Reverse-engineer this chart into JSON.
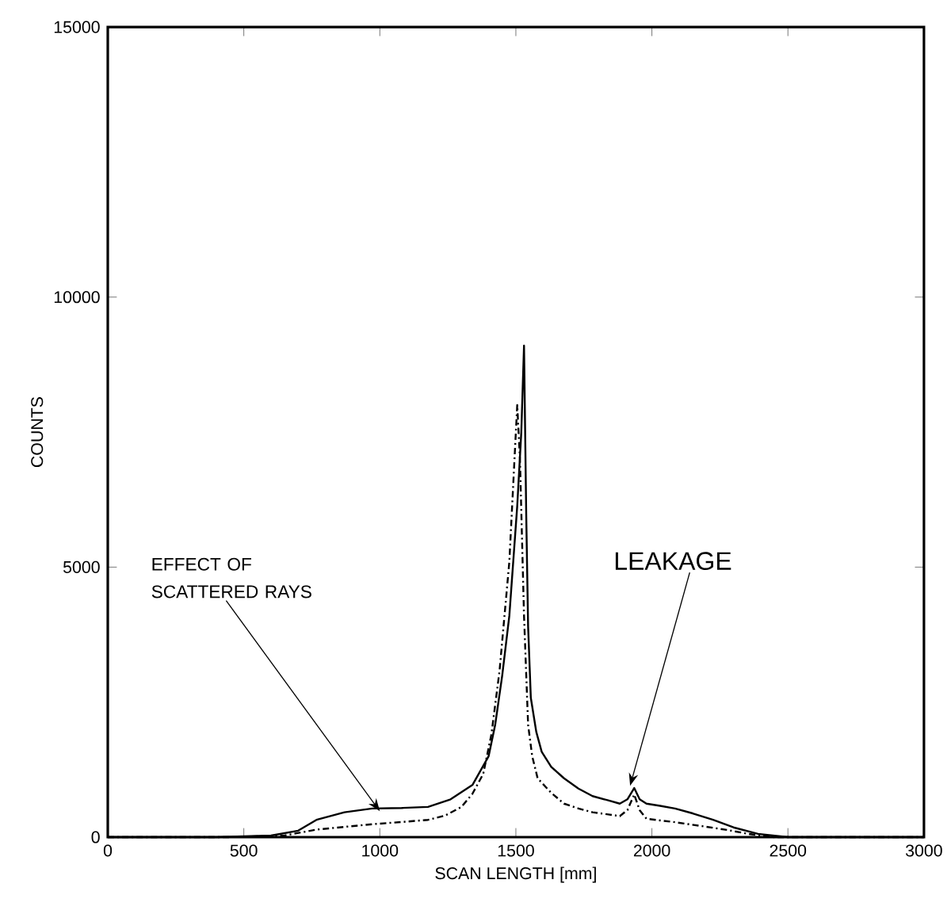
{
  "chart_data": {
    "type": "line",
    "xlabel": "SCAN LENGTH [mm]",
    "ylabel": "COUNTS",
    "xlim": [
      0,
      3000
    ],
    "xticks": [
      0,
      500,
      1000,
      1500,
      2000,
      2500,
      3000
    ],
    "ylim": [
      0,
      15000
    ],
    "yticks": [
      0,
      5000,
      10000,
      15000
    ],
    "grid": false,
    "marker": "none",
    "series": [
      {
        "color": "#000000",
        "line_style": "solid",
        "x": [
          0,
          400,
          600,
          700,
          767,
          870,
          972,
          1080,
          1177,
          1260,
          1341,
          1400,
          1424,
          1450,
          1476,
          1505,
          1520,
          1530,
          1538,
          1545,
          1555,
          1575,
          1595,
          1630,
          1677,
          1730,
          1782,
          1840,
          1882,
          1910,
          1935,
          1955,
          1980,
          2030,
          2085,
          2150,
          2225,
          2300,
          2390,
          2500,
          3000
        ],
        "values": [
          0,
          0,
          30,
          120,
          320,
          460,
          530,
          540,
          560,
          700,
          970,
          1500,
          2080,
          3000,
          4100,
          6130,
          7500,
          9100,
          6000,
          3900,
          2580,
          1950,
          1580,
          1300,
          1090,
          900,
          760,
          680,
          620,
          700,
          910,
          700,
          620,
          580,
          530,
          440,
          320,
          180,
          60,
          0,
          0
        ]
      },
      {
        "color": "#000000",
        "line_style": "dashed",
        "x": [
          0,
          450,
          650,
          767,
          870,
          972,
          1080,
          1177,
          1240,
          1300,
          1340,
          1380,
          1410,
          1440,
          1476,
          1496,
          1505,
          1515,
          1530,
          1545,
          1560,
          1580,
          1630,
          1677,
          1730,
          1782,
          1840,
          1882,
          1910,
          1935,
          1955,
          1980,
          2080,
          2190,
          2280,
          2355,
          2450,
          3000
        ],
        "values": [
          0,
          0,
          30,
          140,
          190,
          240,
          280,
          320,
          400,
          560,
          800,
          1170,
          1900,
          3080,
          5100,
          7100,
          8000,
          7000,
          4100,
          2080,
          1500,
          1090,
          820,
          620,
          530,
          460,
          420,
          390,
          500,
          790,
          500,
          340,
          280,
          200,
          130,
          60,
          0,
          0
        ]
      }
    ],
    "annotations": [
      {
        "text": "EFFECT OF SCATTERED RAYS",
        "x": 1000,
        "y": 480
      },
      {
        "text": "LEAKAGE",
        "x": 1920,
        "y": 950
      }
    ]
  }
}
